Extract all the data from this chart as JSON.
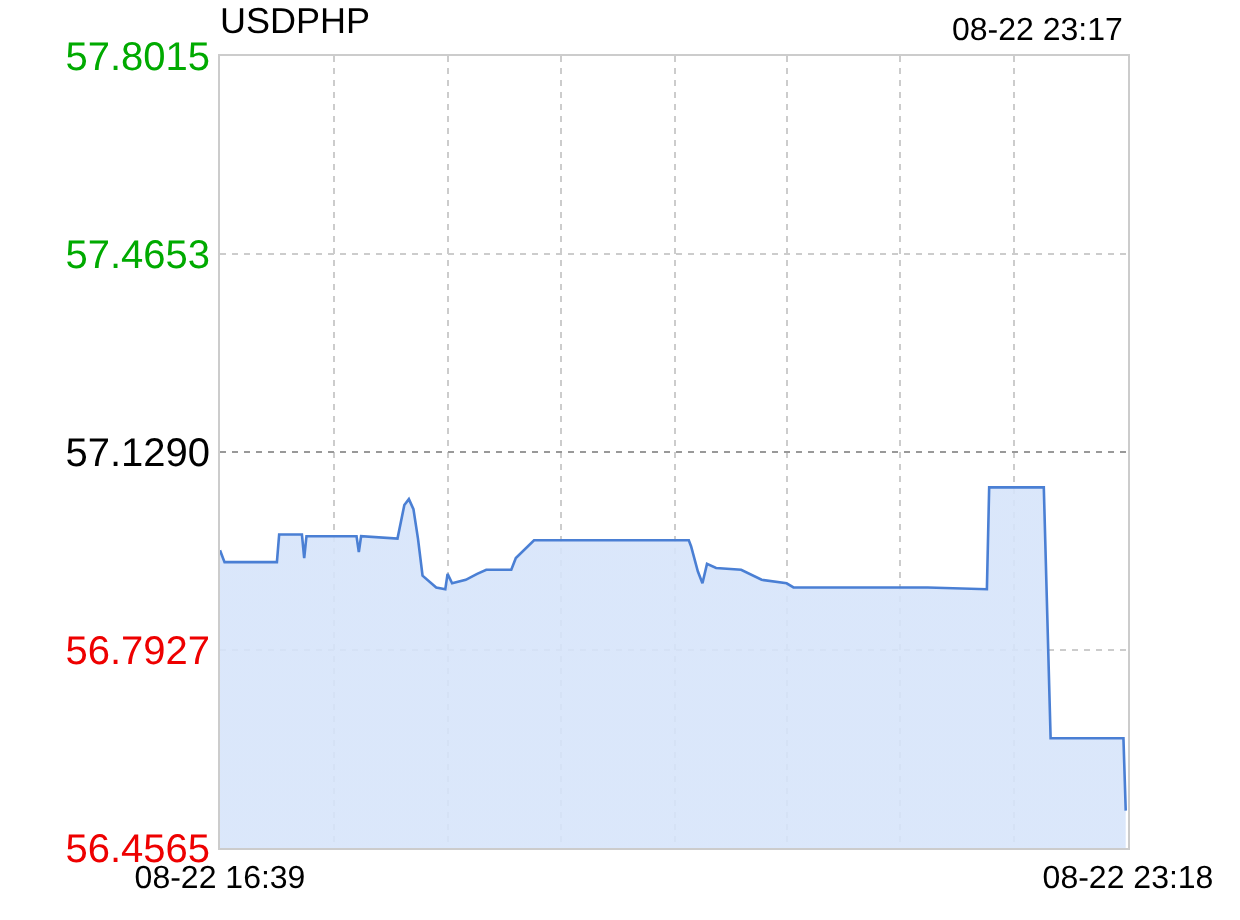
{
  "chart_data": {
    "type": "area",
    "title": "USDPHP",
    "annotations": [
      "08-22 23:17"
    ],
    "x": [
      "--08-22T16:39",
      "--08-22T16:41",
      "--08-22T17:04",
      "--08-22T17:05",
      "--08-22T17:15",
      "--08-22T17:16",
      "--08-22T17:17",
      "--08-22T17:39",
      "--08-22T17:40",
      "--08-22T17:41",
      "--08-22T17:57",
      "--08-22T18:00",
      "--08-22T18:02",
      "--08-22T18:04",
      "--08-22T18:06",
      "--08-22T18:08",
      "--08-22T18:14",
      "--08-22T18:18",
      "--08-22T18:19",
      "--08-22T18:21",
      "--08-22T18:27",
      "--08-22T18:32",
      "--08-22T18:36",
      "--08-22T18:47",
      "--08-22T18:49",
      "--08-22T18:57",
      "--08-22T20:05",
      "--08-22T20:06",
      "--08-22T20:09",
      "--08-22T20:11",
      "--08-22T20:13",
      "--08-22T20:17",
      "--08-22T20:28",
      "--08-22T20:37",
      "--08-22T20:48",
      "--08-22T20:51",
      "--08-22T21:50",
      "--08-22T22:16",
      "--08-22T22:17",
      "--08-22T22:41",
      "--08-22T22:44",
      "--08-22T23:16",
      "--08-22T23:17"
    ],
    "series": [
      {
        "color": "#4a7fd4",
        "values": [
          56.962,
          56.942,
          56.942,
          56.989,
          56.989,
          56.949,
          56.986,
          56.986,
          56.959,
          56.986,
          56.982,
          57.039,
          57.049,
          57.032,
          56.982,
          56.919,
          56.899,
          56.896,
          56.922,
          56.906,
          56.912,
          56.922,
          56.929,
          56.929,
          56.949,
          56.979,
          56.979,
          56.969,
          56.926,
          56.906,
          56.939,
          56.932,
          56.929,
          56.912,
          56.906,
          56.899,
          56.899,
          56.896,
          57.069,
          57.069,
          56.643,
          56.643,
          56.52
        ]
      }
    ],
    "xlim": [
      "--08-22T16:39",
      "--08-22T23:18"
    ],
    "xticks": [
      {
        "value": "--08-22T16:39",
        "label": "08-22 16:39"
      },
      {
        "value": "--08-22T17:29",
        "label": null
      },
      {
        "value": "--08-22T18:19",
        "label": null
      },
      {
        "value": "--08-22T19:09",
        "label": null
      },
      {
        "value": "--08-22T19:59",
        "label": null
      },
      {
        "value": "--08-22T20:48",
        "label": null
      },
      {
        "value": "--08-22T21:38",
        "label": null
      },
      {
        "value": "--08-22T22:28",
        "label": null
      },
      {
        "value": "--08-22T23:18",
        "label": "08-22 23:18"
      }
    ],
    "ylim": [
      56.4565,
      57.8015
    ],
    "yticks": [
      {
        "value": 56.4565,
        "label": "56.4565"
      },
      {
        "value": 56.7927,
        "label": "56.7927"
      },
      {
        "value": 57.129,
        "label": "57.1290"
      },
      {
        "value": 57.4653,
        "label": "57.4653"
      },
      {
        "value": 57.8015,
        "label": "57.8015"
      }
    ],
    "ref_lines": [
      {
        "axis": "y",
        "value": 57.129,
        "color": "#999999",
        "line_style": "dotted"
      }
    ],
    "grid": true,
    "marker": "none",
    "line_style": "solid"
  }
}
